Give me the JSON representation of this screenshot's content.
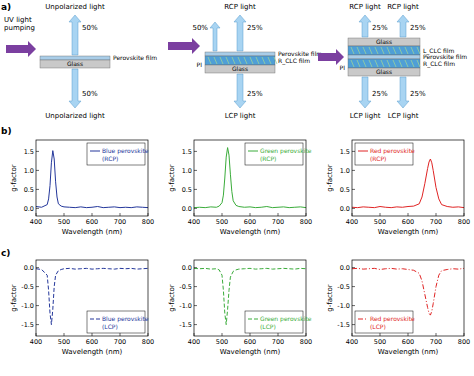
{
  "panel_labels": [
    "a)",
    "b)",
    "c)"
  ],
  "diagram": {
    "schematics": [
      {
        "pump": [
          "UV light",
          "pumping"
        ],
        "top": [
          {
            "light": "Unpolarized light",
            "percent": "50%"
          }
        ],
        "bottom": [
          {
            "light": "Unpolarized light",
            "percent": "50%"
          }
        ],
        "layers": [
          "Perovskite film",
          "Glass"
        ]
      },
      {
        "side": "50%",
        "top": [
          {
            "light": "RCP light",
            "percent": "25%"
          }
        ],
        "bottom": [
          {
            "light": "LCP light",
            "percent": "25%"
          }
        ],
        "layers": [
          "Perovskite film",
          "R_CLC film",
          "Glass"
        ],
        "pi": "PI"
      },
      {
        "top": [
          {
            "light": "RCP light",
            "percent": "25%"
          },
          {
            "light": "RCP light",
            "percent": "25%"
          }
        ],
        "bottom": [
          {
            "light": "LCP light",
            "percent": "25%"
          },
          {
            "light": "LCP light",
            "percent": "25%"
          }
        ],
        "layers": [
          "Glass",
          "L_CLC film",
          "Perovskite film",
          "R_CLC film",
          "Glass"
        ],
        "pi": "PI"
      }
    ]
  },
  "chart_data": [
    {
      "type": "line",
      "xlabel": "Wavelength (nm)",
      "ylabel": "g-factor",
      "xlim": [
        400,
        800
      ],
      "xticks": [
        400,
        500,
        600,
        700,
        800
      ],
      "ylim": [
        -0.2,
        1.8
      ],
      "yticks": [
        {
          "value": 0,
          "label": "0.0"
        },
        {
          "value": 0.5,
          "label": "0.5"
        },
        {
          "value": 1,
          "label": "1.0"
        },
        {
          "value": 1.5,
          "label": "1.5"
        }
      ],
      "legend": "upper right",
      "x": [
        400,
        420,
        440,
        445,
        450,
        455,
        460,
        465,
        470,
        475,
        480,
        490,
        500,
        520,
        540,
        560,
        580,
        600,
        620,
        640,
        660,
        680,
        700,
        720,
        740,
        760,
        780,
        800
      ],
      "series": [
        {
          "name": "Blue perovskite\n(RCP)",
          "color": "#24379b",
          "line_style": "solid",
          "values": [
            0.05,
            0.03,
            0.1,
            0.25,
            0.6,
            1.2,
            1.52,
            1.3,
            0.7,
            0.3,
            0.12,
            0.06,
            0.04,
            0.03,
            0.02,
            0.04,
            0.02,
            0.03,
            0.05,
            0.02,
            0.03,
            0.04,
            0.02,
            0.03,
            0.02,
            0.04,
            0.03,
            0.02
          ]
        }
      ]
    },
    {
      "type": "line",
      "xlabel": "Wavelength (nm)",
      "ylabel": "g-factor",
      "xlim": [
        400,
        800
      ],
      "xticks": [
        400,
        500,
        600,
        700,
        800
      ],
      "ylim": [
        -0.2,
        1.8
      ],
      "yticks": [
        {
          "value": 0,
          "label": "0.0"
        },
        {
          "value": 0.5,
          "label": "0.5"
        },
        {
          "value": 1,
          "label": "1.0"
        },
        {
          "value": 1.5,
          "label": "1.5"
        }
      ],
      "legend": "upper right",
      "x": [
        400,
        420,
        440,
        460,
        480,
        490,
        500,
        505,
        510,
        515,
        520,
        525,
        530,
        535,
        540,
        550,
        560,
        580,
        600,
        620,
        640,
        660,
        680,
        700,
        720,
        740,
        760,
        780,
        800
      ],
      "series": [
        {
          "name": "Green perovskite\n(RCP)",
          "color": "#3aac3a",
          "line_style": "solid",
          "values": [
            0.02,
            0.03,
            0.02,
            0.04,
            0.03,
            0.06,
            0.15,
            0.35,
            0.8,
            1.35,
            1.6,
            1.4,
            0.9,
            0.45,
            0.2,
            0.08,
            0.05,
            0.03,
            0.04,
            0.02,
            0.03,
            0.05,
            0.02,
            0.03,
            0.04,
            0.02,
            0.03,
            0.04,
            0.02
          ]
        }
      ]
    },
    {
      "type": "line",
      "xlabel": "Wavelength (nm)",
      "ylabel": "g-factor",
      "xlim": [
        400,
        800
      ],
      "xticks": [
        400,
        500,
        600,
        700,
        800
      ],
      "ylim": [
        -0.2,
        1.8
      ],
      "yticks": [
        {
          "value": 0,
          "label": "0.0"
        },
        {
          "value": 0.5,
          "label": "0.5"
        },
        {
          "value": 1,
          "label": "1.0"
        },
        {
          "value": 1.5,
          "label": "1.5"
        }
      ],
      "legend": "upper left",
      "x": [
        400,
        420,
        440,
        460,
        480,
        500,
        520,
        540,
        560,
        580,
        600,
        620,
        640,
        650,
        660,
        670,
        675,
        680,
        685,
        690,
        700,
        710,
        720,
        740,
        760,
        780,
        800
      ],
      "series": [
        {
          "name": "Red perovskite\n(RCP)",
          "color": "#e02424",
          "line_style": "solid",
          "values": [
            0.03,
            0.02,
            0.04,
            0.03,
            0.02,
            0.05,
            0.03,
            0.02,
            0.04,
            0.03,
            0.05,
            0.06,
            0.12,
            0.3,
            0.65,
            1.05,
            1.22,
            1.3,
            1.2,
            1.0,
            0.55,
            0.25,
            0.1,
            0.05,
            0.03,
            0.04,
            0.02
          ]
        }
      ]
    },
    {
      "type": "line",
      "xlabel": "Wavelength (nm)",
      "ylabel": "g-factor",
      "xlim": [
        400,
        800
      ],
      "xticks": [
        400,
        500,
        600,
        700,
        800
      ],
      "ylim": [
        -1.8,
        0.2
      ],
      "yticks": [
        {
          "value": 0,
          "label": "0.0"
        },
        {
          "value": -0.5,
          "label": "-0.5"
        },
        {
          "value": -1,
          "label": "-1.0"
        },
        {
          "value": -1.5,
          "label": "-1.5"
        }
      ],
      "legend": "lower right",
      "x": [
        400,
        420,
        440,
        445,
        450,
        455,
        460,
        465,
        470,
        480,
        490,
        500,
        520,
        540,
        560,
        580,
        600,
        620,
        640,
        660,
        680,
        700,
        720,
        740,
        760,
        780,
        800
      ],
      "series": [
        {
          "name": "Blue perovskite\n(LCP)",
          "color": "#24379b",
          "line_style": "dashed",
          "values": [
            -0.03,
            -0.05,
            -0.2,
            -0.6,
            -1.2,
            -1.5,
            -1.1,
            -0.5,
            -0.2,
            -0.08,
            -0.05,
            -0.03,
            -0.02,
            -0.04,
            -0.03,
            -0.02,
            -0.04,
            -0.03,
            -0.02,
            -0.03,
            -0.04,
            -0.02,
            -0.03,
            -0.02,
            -0.04,
            -0.03,
            -0.02
          ]
        }
      ]
    },
    {
      "type": "line",
      "xlabel": "Wavelength (nm)",
      "ylabel": "g-factor",
      "xlim": [
        400,
        800
      ],
      "xticks": [
        400,
        500,
        600,
        700,
        800
      ],
      "ylim": [
        -1.8,
        0.2
      ],
      "yticks": [
        {
          "value": 0,
          "label": "0.0"
        },
        {
          "value": -0.5,
          "label": "-0.5"
        },
        {
          "value": -1,
          "label": "-1.0"
        },
        {
          "value": -1.5,
          "label": "-1.5"
        }
      ],
      "legend": "lower right",
      "x": [
        400,
        420,
        440,
        460,
        480,
        490,
        500,
        505,
        510,
        515,
        520,
        525,
        530,
        540,
        550,
        560,
        580,
        600,
        620,
        640,
        660,
        680,
        700,
        720,
        740,
        760,
        780,
        800
      ],
      "series": [
        {
          "name": "Green perovskite\n(LCP)",
          "color": "#3aac3a",
          "line_style": "dashed",
          "values": [
            -0.02,
            -0.03,
            -0.02,
            -0.04,
            -0.03,
            -0.06,
            -0.2,
            -0.6,
            -1.2,
            -1.5,
            -1.1,
            -0.6,
            -0.25,
            -0.1,
            -0.06,
            -0.04,
            -0.03,
            -0.02,
            -0.04,
            -0.03,
            -0.02,
            -0.04,
            -0.03,
            -0.02,
            -0.03,
            -0.04,
            -0.02,
            -0.03
          ]
        }
      ]
    },
    {
      "type": "line",
      "xlabel": "Wavelength (nm)",
      "ylabel": "g-factor",
      "xlim": [
        400,
        800
      ],
      "xticks": [
        400,
        500,
        600,
        700,
        800
      ],
      "ylim": [
        -1.8,
        0.2
      ],
      "yticks": [
        {
          "value": 0,
          "label": "0.0"
        },
        {
          "value": -0.5,
          "label": "-0.5"
        },
        {
          "value": -1,
          "label": "-1.0"
        },
        {
          "value": -1.5,
          "label": "-1.5"
        }
      ],
      "legend": "lower left",
      "x": [
        400,
        420,
        440,
        460,
        480,
        500,
        520,
        540,
        560,
        580,
        600,
        620,
        640,
        650,
        660,
        670,
        675,
        680,
        685,
        690,
        700,
        710,
        720,
        740,
        760,
        780,
        800
      ],
      "series": [
        {
          "name": "Red perovskite\n(LCP)",
          "color": "#e02424",
          "line_style": "dashdot",
          "values": [
            -0.03,
            -0.02,
            -0.04,
            -0.03,
            -0.02,
            -0.05,
            -0.03,
            -0.02,
            -0.04,
            -0.03,
            -0.05,
            -0.07,
            -0.15,
            -0.35,
            -0.7,
            -1.05,
            -1.2,
            -1.25,
            -1.15,
            -0.95,
            -0.5,
            -0.2,
            -0.08,
            -0.05,
            -0.03,
            -0.04,
            -0.02
          ]
        }
      ]
    }
  ]
}
